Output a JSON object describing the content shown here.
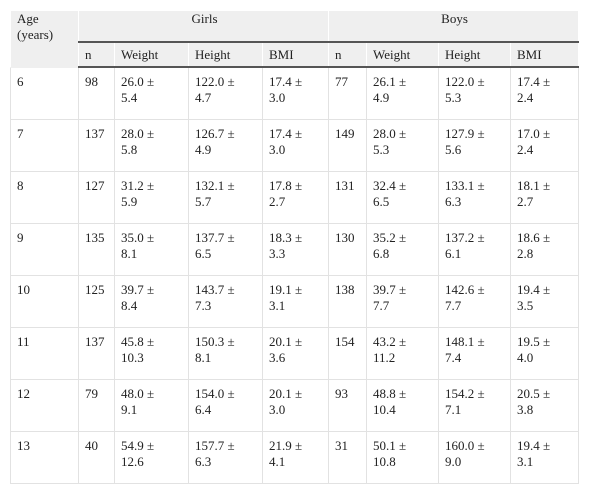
{
  "header": {
    "age": "Age (years)",
    "groups": [
      "Girls",
      "Boys"
    ],
    "columns": [
      "n",
      "Weight",
      "Height",
      "BMI",
      "n",
      "Weight",
      "Height",
      "BMI"
    ]
  },
  "table": {
    "rows": [
      [
        "6",
        "98",
        "26.0 ± 5.4",
        "122.0 ± 4.7",
        "17.4 ± 3.0",
        "77",
        "26.1 ± 4.9",
        "122.0 ± 5.3",
        "17.4 ± 2.4"
      ],
      [
        "7",
        "137",
        "28.0 ± 5.8",
        "126.7 ± 4.9",
        "17.4 ± 3.0",
        "149",
        "28.0 ± 5.3",
        "127.9 ± 5.6",
        "17.0 ± 2.4"
      ],
      [
        "8",
        "127",
        "31.2 ± 5.9",
        "132.1 ± 5.7",
        "17.8 ± 2.7",
        "131",
        "32.4 ± 6.5",
        "133.1 ± 6.3",
        "18.1 ± 2.7"
      ],
      [
        "9",
        "135",
        "35.0 ± 8.1",
        "137.7 ± 6.5",
        "18.3 ± 3.3",
        "130",
        "35.2 ± 6.8",
        "137.2 ± 6.1",
        "18.6 ± 2.8"
      ],
      [
        "10",
        "125",
        "39.7 ± 8.4",
        "143.7 ± 7.3",
        "19.1 ± 3.1",
        "138",
        "39.7 ± 7.7",
        "142.6 ± 7.7",
        "19.4 ± 3.5"
      ],
      [
        "11",
        "137",
        "45.8 ± 10.3",
        "150.3 ± 8.1",
        "20.1 ± 3.6",
        "154",
        "43.2 ± 11.2",
        "148.1 ± 7.4",
        "19.5 ± 4.0"
      ],
      [
        "12",
        "79",
        "48.0 ± 9.1",
        "154.0 ± 6.4",
        "20.1 ± 3.0",
        "93",
        "48.8 ± 10.4",
        "154.2 ± 7.1",
        "20.5 ± 3.8"
      ],
      [
        "13",
        "40",
        "54.9 ± 12.6",
        "157.7 ± 6.3",
        "21.9 ± 4.1",
        "31",
        "50.1 ± 10.8",
        "160.0 ± 9.0",
        "19.4 ± 3.1"
      ]
    ]
  }
}
